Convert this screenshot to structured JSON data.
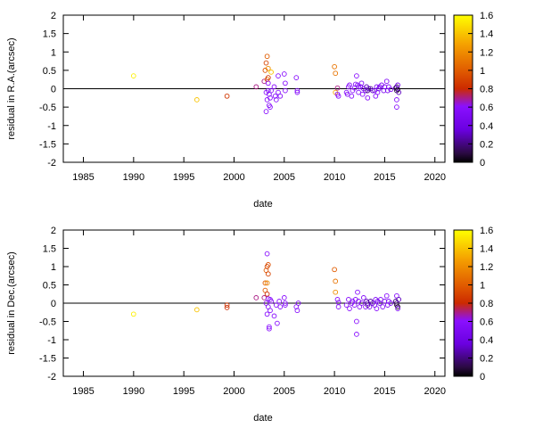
{
  "chart_data": [
    {
      "type": "scatter",
      "xlabel": "date",
      "ylabel": "residual in R.A.(arcsec)",
      "xlim": [
        1983,
        2021
      ],
      "ylim": [
        -2,
        2
      ],
      "xticks": [
        1985,
        1990,
        1995,
        2000,
        2005,
        2010,
        2015,
        2020
      ],
      "yticks": [
        -2,
        -1.5,
        -1,
        -0.5,
        0,
        0.5,
        1,
        1.5,
        2
      ],
      "zero_line": true,
      "grid": false,
      "marker": "open-circle",
      "colorbar": {
        "min": 0,
        "max": 1.6,
        "ticks": [
          0,
          0.2,
          0.4,
          0.6,
          0.8,
          1,
          1.2,
          1.4,
          1.6
        ],
        "colormap": [
          "#000000",
          "#7a00ff",
          "#cc2a00",
          "#ffff00"
        ]
      },
      "points": [
        [
          1990.0,
          0.35,
          1.55
        ],
        [
          1996.3,
          -0.3,
          1.4
        ],
        [
          1999.3,
          -0.2,
          0.85
        ],
        [
          2002.2,
          0.05,
          0.7
        ],
        [
          2003.0,
          0.2,
          0.7
        ],
        [
          2003.1,
          0.5,
          0.95
        ],
        [
          2003.2,
          0.7,
          0.9
        ],
        [
          2003.2,
          -0.1,
          0.6
        ],
        [
          2003.3,
          0.88,
          1.0
        ],
        [
          2003.3,
          0.25,
          1.1
        ],
        [
          2003.3,
          -0.3,
          0.6
        ],
        [
          2003.4,
          0.55,
          1.2
        ],
        [
          2003.4,
          0.3,
          0.8
        ],
        [
          2003.4,
          0.15,
          0.6
        ],
        [
          2003.4,
          -0.05,
          0.55
        ],
        [
          2003.5,
          -0.15,
          0.55
        ],
        [
          2003.5,
          -0.45,
          0.55
        ],
        [
          2003.6,
          -0.25,
          0.6
        ],
        [
          2003.6,
          -0.5,
          0.6
        ],
        [
          2003.7,
          0.45,
          1.4
        ],
        [
          2003.7,
          -0.05,
          0.6
        ],
        [
          2003.2,
          -0.62,
          0.6
        ],
        [
          2004.0,
          0.05,
          0.6
        ],
        [
          2004.1,
          -0.2,
          0.6
        ],
        [
          2004.2,
          -0.3,
          0.6
        ],
        [
          2004.4,
          0.35,
          0.6
        ],
        [
          2004.4,
          -0.1,
          0.55
        ],
        [
          2004.6,
          -0.2,
          0.55
        ],
        [
          2005.0,
          0.4,
          0.6
        ],
        [
          2005.1,
          0.15,
          0.6
        ],
        [
          2005.1,
          -0.05,
          0.6
        ],
        [
          2006.2,
          0.3,
          0.6
        ],
        [
          2006.3,
          -0.05,
          0.6
        ],
        [
          2006.3,
          -0.1,
          0.55
        ],
        [
          2010.0,
          0.6,
          1.1
        ],
        [
          2010.1,
          0.42,
          1.1
        ],
        [
          2010.1,
          -0.1,
          1.3
        ],
        [
          2010.3,
          0.02,
          0.7
        ],
        [
          2010.3,
          -0.15,
          0.6
        ],
        [
          2010.4,
          -0.2,
          0.6
        ],
        [
          2011.2,
          -0.1,
          0.6
        ],
        [
          2011.3,
          -0.15,
          0.55
        ],
        [
          2011.4,
          0.05,
          0.6
        ],
        [
          2011.5,
          0.1,
          0.6
        ],
        [
          2011.7,
          -0.2,
          0.6
        ],
        [
          2011.8,
          -0.05,
          0.6
        ],
        [
          2012.0,
          0.02,
          0.6
        ],
        [
          2012.1,
          0.12,
          0.6
        ],
        [
          2012.2,
          0.35,
          0.6
        ],
        [
          2012.3,
          0.1,
          0.6
        ],
        [
          2012.4,
          -0.1,
          0.55
        ],
        [
          2012.4,
          0.05,
          0.5
        ],
        [
          2012.6,
          0.05,
          0.5
        ],
        [
          2012.7,
          0.15,
          0.55
        ],
        [
          2012.8,
          -0.15,
          0.6
        ],
        [
          2012.9,
          0.0,
          0.5
        ],
        [
          2013.1,
          -0.05,
          0.4
        ],
        [
          2013.2,
          0.05,
          0.3
        ],
        [
          2013.3,
          -0.25,
          0.6
        ],
        [
          2013.3,
          -0.05,
          0.2
        ],
        [
          2013.4,
          0.0,
          0.3
        ],
        [
          2013.6,
          0.0,
          0.25
        ],
        [
          2013.8,
          -0.05,
          0.3
        ],
        [
          2014.0,
          -0.05,
          0.5
        ],
        [
          2014.1,
          -0.2,
          0.6
        ],
        [
          2014.2,
          0.05,
          0.55
        ],
        [
          2014.3,
          -0.1,
          0.6
        ],
        [
          2014.4,
          0.0,
          0.4
        ],
        [
          2014.5,
          0.05,
          0.5
        ],
        [
          2014.7,
          0.1,
          0.55
        ],
        [
          2014.9,
          -0.05,
          0.5
        ],
        [
          2015.0,
          0.05,
          0.5
        ],
        [
          2015.2,
          0.2,
          0.55
        ],
        [
          2015.3,
          -0.05,
          0.5
        ],
        [
          2015.4,
          0.05,
          0.55
        ],
        [
          2015.6,
          -0.02,
          0.5
        ],
        [
          2016.1,
          0.02,
          0.2
        ],
        [
          2016.2,
          -0.05,
          0.1
        ],
        [
          2016.2,
          0.05,
          0.15
        ],
        [
          2016.3,
          -0.02,
          0.05
        ],
        [
          2016.2,
          -0.3,
          0.6
        ],
        [
          2016.2,
          -0.5,
          0.6
        ],
        [
          2016.3,
          0.1,
          0.5
        ],
        [
          2016.4,
          -0.1,
          0.3
        ]
      ]
    },
    {
      "type": "scatter",
      "xlabel": "date",
      "ylabel": "residual in Dec.(arcsec)",
      "xlim": [
        1983,
        2021
      ],
      "ylim": [
        -2,
        2
      ],
      "xticks": [
        1985,
        1990,
        1995,
        2000,
        2005,
        2010,
        2015,
        2020
      ],
      "yticks": [
        -2,
        -1.5,
        -1,
        -0.5,
        0,
        0.5,
        1,
        1.5,
        2
      ],
      "zero_line": true,
      "grid": false,
      "marker": "open-circle",
      "colorbar": {
        "min": 0,
        "max": 1.6,
        "ticks": [
          0,
          0.2,
          0.4,
          0.6,
          0.8,
          1,
          1.2,
          1.4,
          1.6
        ],
        "colormap": [
          "#000000",
          "#7a00ff",
          "#cc2a00",
          "#ffff00"
        ]
      },
      "points": [
        [
          1990.0,
          -0.3,
          1.55
        ],
        [
          1996.3,
          -0.18,
          1.4
        ],
        [
          1999.3,
          -0.05,
          0.85
        ],
        [
          1999.3,
          -0.12,
          0.8
        ],
        [
          2002.2,
          0.15,
          0.7
        ],
        [
          2003.0,
          0.15,
          0.7
        ],
        [
          2003.1,
          0.55,
          1.0
        ],
        [
          2003.1,
          0.35,
          1.0
        ],
        [
          2003.2,
          0.9,
          1.0
        ],
        [
          2003.2,
          0.0,
          0.6
        ],
        [
          2003.3,
          1.35,
          0.6
        ],
        [
          2003.3,
          1.0,
          0.9
        ],
        [
          2003.3,
          0.55,
          1.2
        ],
        [
          2003.3,
          0.25,
          0.8
        ],
        [
          2003.3,
          -0.3,
          0.6
        ],
        [
          2003.4,
          1.05,
          0.95
        ],
        [
          2003.4,
          0.8,
          0.9
        ],
        [
          2003.4,
          0.12,
          0.6
        ],
        [
          2003.4,
          -0.1,
          0.55
        ],
        [
          2003.5,
          -0.65,
          0.6
        ],
        [
          2003.5,
          -0.7,
          0.6
        ],
        [
          2003.6,
          0.1,
          0.6
        ],
        [
          2003.6,
          -0.2,
          0.6
        ],
        [
          2003.7,
          0.05,
          0.6
        ],
        [
          2004.0,
          -0.35,
          0.6
        ],
        [
          2004.2,
          -0.05,
          0.6
        ],
        [
          2004.3,
          -0.55,
          0.6
        ],
        [
          2004.5,
          0.05,
          0.6
        ],
        [
          2004.6,
          -0.1,
          0.55
        ],
        [
          2005.0,
          0.15,
          0.6
        ],
        [
          2005.1,
          0.0,
          0.6
        ],
        [
          2005.1,
          -0.05,
          0.6
        ],
        [
          2006.2,
          -0.1,
          0.6
        ],
        [
          2006.3,
          -0.2,
          0.6
        ],
        [
          2006.4,
          0.0,
          0.55
        ],
        [
          2010.0,
          0.92,
          1.0
        ],
        [
          2010.1,
          0.6,
          1.1
        ],
        [
          2010.1,
          0.3,
          1.2
        ],
        [
          2010.3,
          0.1,
          0.6
        ],
        [
          2010.4,
          -0.1,
          0.6
        ],
        [
          2010.4,
          0.02,
          0.6
        ],
        [
          2011.2,
          -0.05,
          0.6
        ],
        [
          2011.4,
          0.1,
          0.6
        ],
        [
          2011.5,
          -0.15,
          0.6
        ],
        [
          2011.7,
          0.0,
          0.55
        ],
        [
          2011.8,
          0.05,
          0.6
        ],
        [
          2012.0,
          -0.05,
          0.6
        ],
        [
          2012.1,
          0.1,
          0.6
        ],
        [
          2012.2,
          -0.5,
          0.6
        ],
        [
          2012.2,
          -0.85,
          0.6
        ],
        [
          2012.3,
          0.3,
          0.6
        ],
        [
          2012.4,
          0.05,
          0.55
        ],
        [
          2012.5,
          -0.1,
          0.6
        ],
        [
          2012.7,
          0.0,
          0.5
        ],
        [
          2012.9,
          0.15,
          0.55
        ],
        [
          2013.1,
          -0.1,
          0.6
        ],
        [
          2013.2,
          0.05,
          0.3
        ],
        [
          2013.3,
          -0.05,
          0.2
        ],
        [
          2013.3,
          0.0,
          0.3
        ],
        [
          2013.5,
          -0.1,
          0.5
        ],
        [
          2013.6,
          0.05,
          0.25
        ],
        [
          2013.8,
          0.0,
          0.3
        ],
        [
          2014.0,
          -0.05,
          0.5
        ],
        [
          2014.1,
          0.1,
          0.55
        ],
        [
          2014.2,
          -0.15,
          0.6
        ],
        [
          2014.3,
          0.05,
          0.5
        ],
        [
          2014.5,
          0.0,
          0.4
        ],
        [
          2014.6,
          0.1,
          0.55
        ],
        [
          2014.8,
          -0.1,
          0.55
        ],
        [
          2015.0,
          0.05,
          0.5
        ],
        [
          2015.2,
          0.2,
          0.6
        ],
        [
          2015.3,
          -0.05,
          0.5
        ],
        [
          2015.4,
          0.05,
          0.55
        ],
        [
          2015.6,
          0.0,
          0.5
        ],
        [
          2016.1,
          0.05,
          0.2
        ],
        [
          2016.2,
          -0.05,
          0.1
        ],
        [
          2016.2,
          0.0,
          0.15
        ],
        [
          2016.3,
          -0.1,
          0.05
        ],
        [
          2016.2,
          0.2,
          0.6
        ],
        [
          2016.3,
          -0.15,
          0.5
        ],
        [
          2016.4,
          0.1,
          0.3
        ]
      ]
    }
  ]
}
